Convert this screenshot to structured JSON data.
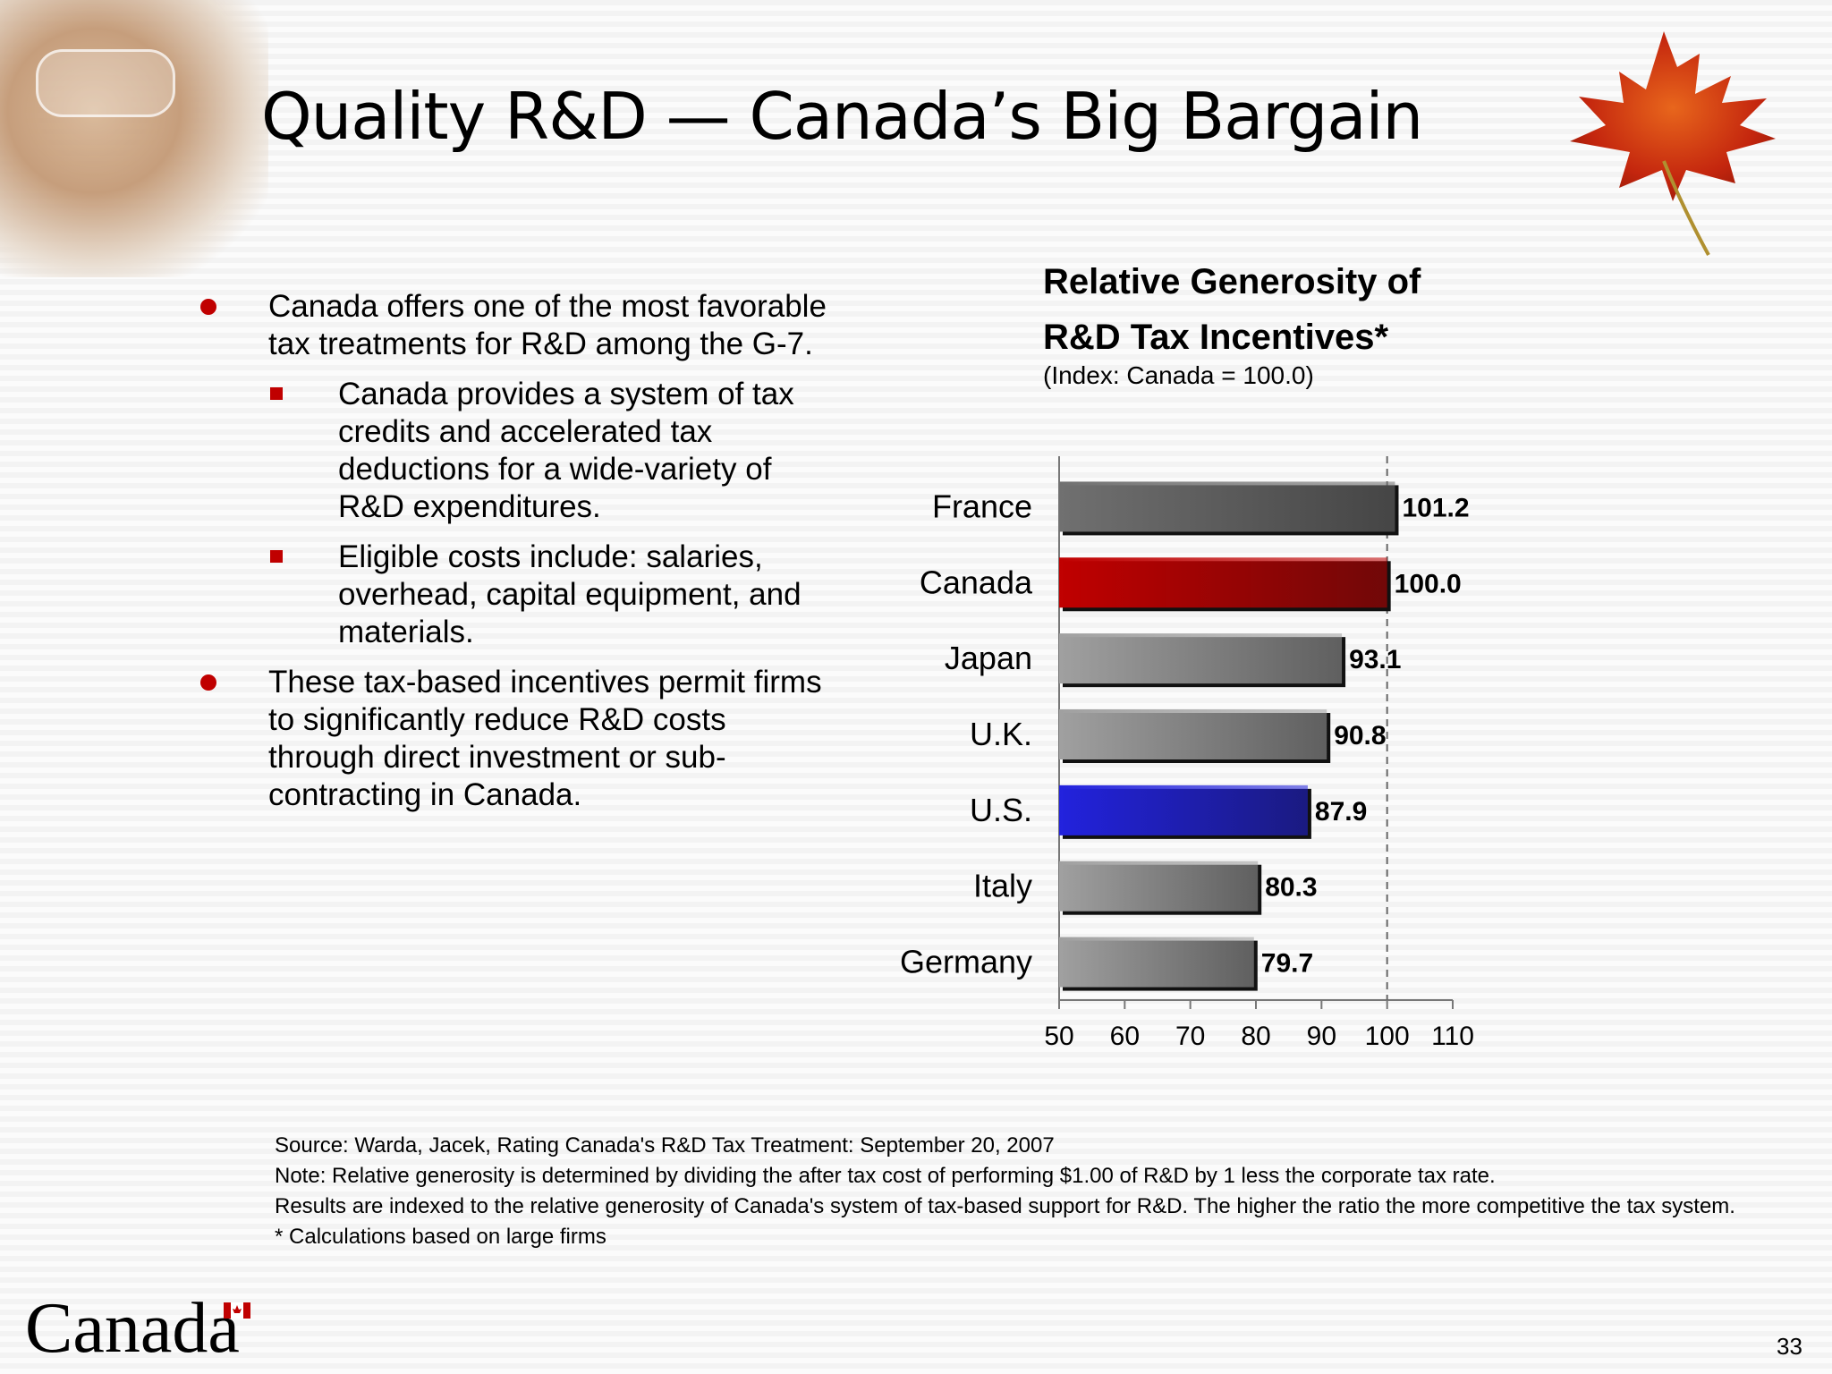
{
  "slide": {
    "title": "Quality R&D — Canada’s Big Bargain",
    "page_number": "33",
    "logo_text": "Canada"
  },
  "bullets": [
    {
      "level": 1,
      "text": "Canada offers one of the most favorable tax treatments for R&D among the G-7."
    },
    {
      "level": 2,
      "text": "Canada provides a system of tax credits and accelerated tax deductions for a wide-variety of R&D expenditures."
    },
    {
      "level": 2,
      "text": "Eligible costs include: salaries, overhead, capital equipment, and materials."
    },
    {
      "level": 1,
      "text": "These tax-based incentives permit firms to significantly reduce R&D costs through direct investment or sub-contracting in Canada."
    }
  ],
  "notes": [
    "Source: Warda, Jacek, Rating Canada's R&D Tax Treatment: September 20, 2007",
    "Note: Relative generosity is determined by dividing the after tax cost of performing $1.00 of R&D by 1 less the corporate tax rate.",
    "Results are indexed to the relative generosity of Canada's system of tax-based support for R&D. The higher the ratio the more competitive the tax system.",
    "* Calculations based on large firms"
  ],
  "chart_data": {
    "type": "bar",
    "orientation": "horizontal",
    "title_line1": "Relative Generosity of",
    "title_line2": "R&D  Tax Incentives*",
    "subtitle": "(Index: Canada = 100.0)",
    "categories": [
      "France",
      "Canada",
      "Japan",
      "U.K.",
      "U.S.",
      "Italy",
      "Germany"
    ],
    "values": [
      101.2,
      100.0,
      93.1,
      90.8,
      87.9,
      80.3,
      79.7
    ],
    "value_labels": [
      "101.2",
      "100.0",
      "93.1",
      "90.8",
      "87.9",
      "80.3",
      "79.7"
    ],
    "bar_colors": [
      "#707070",
      "#c00000",
      "#a0a0a0",
      "#a0a0a0",
      "#2222dd",
      "#a0a0a0",
      "#a0a0a0"
    ],
    "xlim": [
      50,
      110
    ],
    "ticks": [
      50,
      60,
      70,
      80,
      90,
      100,
      110
    ],
    "reference_line": 100,
    "grid": false
  }
}
